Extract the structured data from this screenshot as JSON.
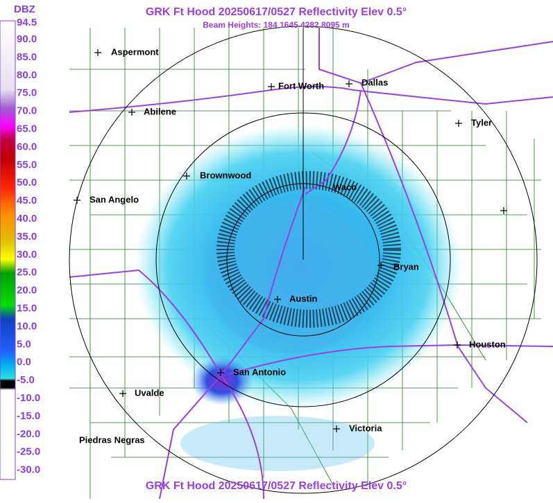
{
  "header": {
    "title": "GRK Ft Hood 20250617/0527 Reflectivity Elev 0.5°",
    "subtitle": "Beam Heights: 184 1645 4282 8095 m"
  },
  "legend": {
    "unit": "DBZ",
    "labels": [
      "94.5",
      "90.0",
      "85.0",
      "80.0",
      "75.0",
      "70.0",
      "65.0",
      "60.0",
      "55.0",
      "50.0",
      "45.0",
      "40.0",
      "35.0",
      "30.0",
      "25.0",
      "20.0",
      "15.0",
      "10.0",
      "5.0",
      "0.0",
      "-5.0",
      "-10.0",
      "-15.0",
      "-20.0",
      "-25.0",
      "-30.0"
    ]
  },
  "cities": [
    {
      "name": "Aspermont"
    },
    {
      "name": "Fort Worth"
    },
    {
      "name": "Dallas"
    },
    {
      "name": "Abilene"
    },
    {
      "name": "Tyler"
    },
    {
      "name": "Brownwood"
    },
    {
      "name": "Waco"
    },
    {
      "name": "San Angelo"
    },
    {
      "name": "Bryan"
    },
    {
      "name": "Austin"
    },
    {
      "name": "Houston"
    },
    {
      "name": "San Antonio"
    },
    {
      "name": "Uvalde"
    },
    {
      "name": "Victoria"
    },
    {
      "name": "Piedras Negras"
    }
  ],
  "footer": {
    "title": "GRK Ft Hood 20250617/0527 Reflectivity Elev 0.5°"
  }
}
